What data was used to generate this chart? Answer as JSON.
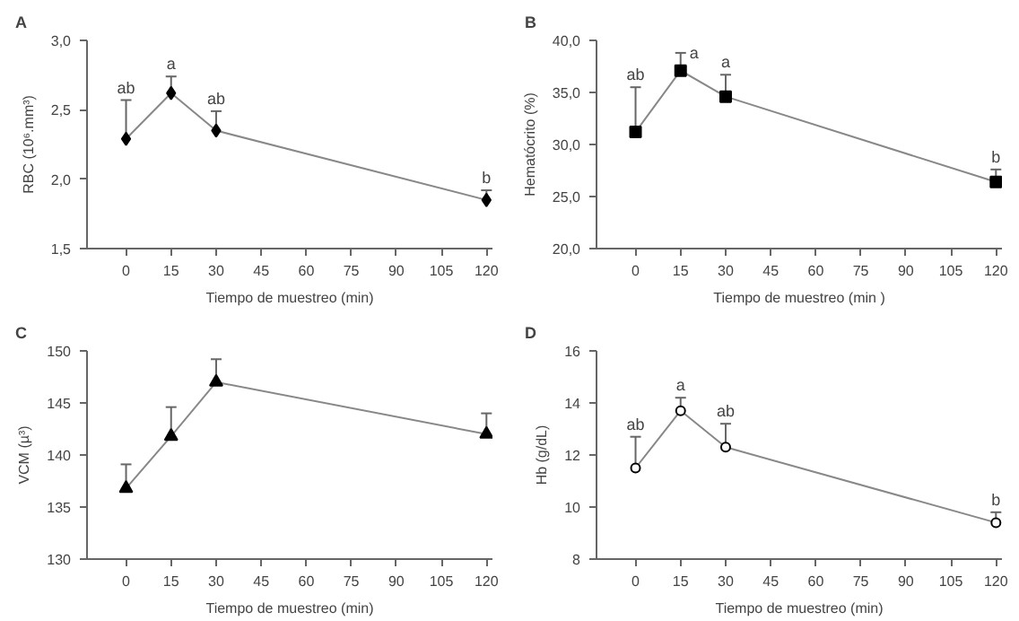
{
  "chart_data": [
    {
      "type": "line",
      "title": "A",
      "xlabel": "Tiempo de muestreo (min)",
      "ylabel": "RBC (10⁶.mm³)",
      "x": [
        0,
        15,
        30,
        120
      ],
      "series": [
        {
          "color": "#000000",
          "values": [
            2.29,
            2.62,
            2.35,
            1.85
          ],
          "errors": [
            [
              2.29,
              2.57
            ],
            [
              2.62,
              2.74
            ],
            [
              2.35,
              2.49
            ],
            [
              1.85,
              1.92
            ]
          ]
        }
      ],
      "marker": "diamond",
      "xlim": [
        -13,
        122
      ],
      "xticks": [
        0,
        15,
        30,
        45,
        60,
        75,
        90,
        105,
        120
      ],
      "ylim": [
        1.5,
        3.0
      ],
      "yticks": [
        {
          "value": 1.5,
          "label": "1,5"
        },
        {
          "value": 2.0,
          "label": "2,0"
        },
        {
          "value": 2.5,
          "label": "2,5"
        },
        {
          "value": 3.0,
          "label": "3,0"
        }
      ],
      "grid": false,
      "annotations": [
        {
          "text": "ab",
          "x": 0,
          "y": 2.57
        },
        {
          "text": "a",
          "x": 15,
          "y": 2.74
        },
        {
          "text": "ab",
          "x": 30,
          "y": 2.49
        },
        {
          "text": "b",
          "x": 120,
          "y": 1.92
        }
      ]
    },
    {
      "type": "line",
      "title": "B",
      "xlabel": "Tiempo de muestreo (min )",
      "ylabel": "Hematócrito (%)",
      "x": [
        0,
        15,
        30,
        120
      ],
      "series": [
        {
          "color": "#000000",
          "values": [
            31.2,
            37.1,
            34.6,
            26.4
          ],
          "errors": [
            [
              31.2,
              35.5
            ],
            [
              37.1,
              38.8
            ],
            [
              34.6,
              36.7
            ],
            [
              26.4,
              27.6
            ]
          ]
        }
      ],
      "marker": "square",
      "xlim": [
        -13,
        122
      ],
      "xticks": [
        0,
        15,
        30,
        45,
        60,
        75,
        90,
        105,
        120
      ],
      "ylim": [
        20,
        40
      ],
      "yticks": [
        {
          "value": 20,
          "label": "20,0"
        },
        {
          "value": 25,
          "label": "25,0"
        },
        {
          "value": 30,
          "label": "30,0"
        },
        {
          "value": 35,
          "label": "35,0"
        },
        {
          "value": 40,
          "label": "40,0"
        }
      ],
      "grid": false,
      "annotations": [
        {
          "text": "ab",
          "x": 0,
          "y": 35.5
        },
        {
          "text": "a",
          "x": 15,
          "y": 38.8
        },
        {
          "text": "a",
          "x": 30,
          "y": 36.7
        },
        {
          "text": "b",
          "x": 120,
          "y": 27.6
        }
      ]
    },
    {
      "type": "line",
      "title": "C",
      "xlabel": "Tiempo de muestreo (min)",
      "ylabel": "VCM (µ³)",
      "x": [
        0,
        15,
        30,
        120
      ],
      "series": [
        {
          "color": "#000000",
          "values": [
            136.8,
            141.8,
            147.0,
            142.0
          ],
          "errors": [
            [
              136.8,
              139.1
            ],
            [
              141.8,
              144.6
            ],
            [
              147.0,
              149.2
            ],
            [
              142.0,
              144.0
            ]
          ]
        }
      ],
      "marker": "triangle",
      "xlim": [
        -13,
        122
      ],
      "xticks": [
        0,
        15,
        30,
        45,
        60,
        75,
        90,
        105,
        120
      ],
      "ylim": [
        130,
        150
      ],
      "yticks": [
        130,
        135,
        140,
        145,
        150
      ],
      "grid": false
    },
    {
      "type": "line",
      "title": "D",
      "xlabel": "Tiempo de muestreo (min)",
      "ylabel": "Hb (g/dL)",
      "x": [
        0,
        15,
        30,
        120
      ],
      "series": [
        {
          "color": "#000000",
          "values": [
            11.5,
            13.7,
            12.3,
            9.4
          ],
          "errors": [
            [
              11.5,
              12.7
            ],
            [
              13.7,
              14.2
            ],
            [
              12.3,
              13.2
            ],
            [
              9.4,
              9.8
            ]
          ]
        }
      ],
      "marker": "circle",
      "xlim": [
        -13,
        122
      ],
      "xticks": [
        0,
        15,
        30,
        45,
        60,
        75,
        90,
        105,
        120
      ],
      "ylim": [
        8,
        16
      ],
      "yticks": [
        8,
        10,
        12,
        14,
        16
      ],
      "grid": false,
      "annotations": [
        {
          "text": "ab",
          "x": 0,
          "y": 12.7
        },
        {
          "text": "a",
          "x": 15,
          "y": 14.2
        },
        {
          "text": "ab",
          "x": 30,
          "y": 13.2
        },
        {
          "text": "b",
          "x": 120,
          "y": 9.8
        }
      ]
    }
  ]
}
